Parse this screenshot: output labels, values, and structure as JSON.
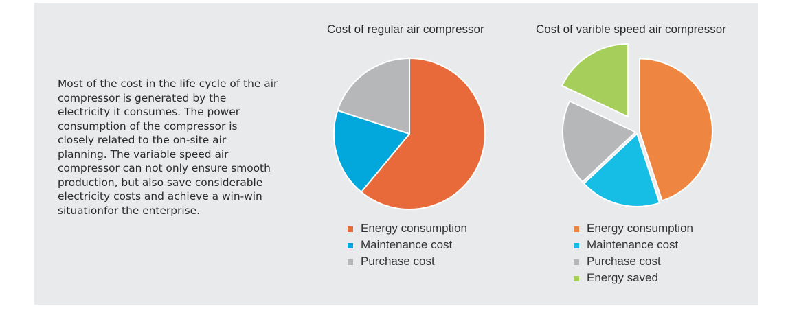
{
  "description": "Most of the cost in the life cycle of the air\ncompressor is generated by the\nelectricity it consumes. The power\nconsumption of the compressor is\nclosely related to the on-site air\nplanning. The variable speed air\ncompressor can not only ensure smooth\nproduction, but also save considerable\nelectricity costs and achieve a win-win\nsituationfor the enterprise.",
  "chart_data": [
    {
      "type": "pie",
      "title": "Cost of regular air compressor",
      "categories": [
        "Energy consumption",
        "Maintenance cost",
        "Purchase cost"
      ],
      "values": [
        61,
        19,
        20
      ],
      "colors": [
        "#e8693a",
        "#02a7dc",
        "#b6b7b9"
      ],
      "exploded": [],
      "legend_position": "bottom"
    },
    {
      "type": "pie",
      "title": "Cost of varible speed air compressor",
      "categories": [
        "Energy consumption",
        "Maintenance cost",
        "Purchase cost",
        "Energy saved"
      ],
      "values": [
        45,
        18,
        19,
        18
      ],
      "colors": [
        "#ee8540",
        "#16bde5",
        "#b6b7b9",
        "#a6ce5a"
      ],
      "exploded": [
        "Energy saved"
      ],
      "legend_position": "bottom"
    }
  ]
}
